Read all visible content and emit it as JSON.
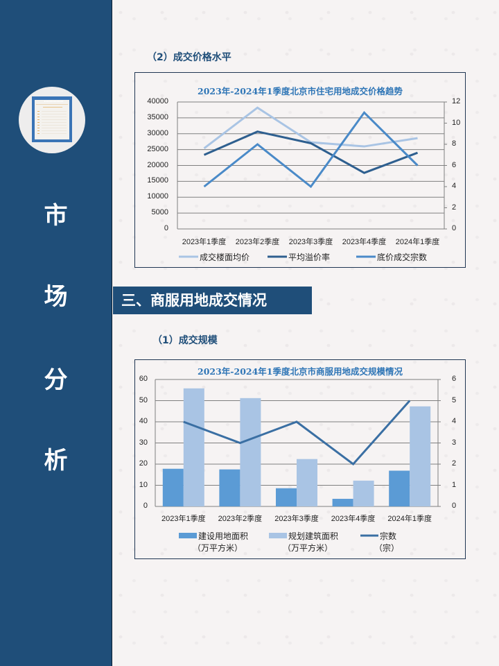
{
  "sidebar": {
    "title_chars": [
      "市",
      "场",
      "分",
      "析"
    ],
    "icon": "document-list-icon",
    "bg_color": "#1f4e79"
  },
  "section2": {
    "subtitle": "（2）成交价格水平"
  },
  "section3": {
    "header": "三、商服用地成交情况",
    "subtitle": "（1）成交规模"
  },
  "chart_data": [
    {
      "type": "line",
      "title": "2023年-2024年1季度北京市住宅用地成交价格趋势",
      "categories": [
        "2023年1季度",
        "2023年2季度",
        "2023年3季度",
        "2023年4季度",
        "2024年1季度"
      ],
      "series": [
        {
          "name": "成交楼面均价",
          "axis": "left",
          "color": "#a9c4e4",
          "values": [
            25400,
            38200,
            27300,
            26000,
            28600
          ]
        },
        {
          "name": "平均溢价率",
          "axis": "right",
          "color": "#2e5f8f",
          "values": [
            7.0,
            9.2,
            8.1,
            5.3,
            7.2
          ]
        },
        {
          "name": "底价成交宗数",
          "axis": "right",
          "color": "#4a8ac8",
          "values": [
            4,
            8,
            4,
            11,
            6
          ]
        }
      ],
      "y_left": {
        "min": 0,
        "max": 40000,
        "ticks": [
          "0",
          "5000",
          "10000",
          "15000",
          "20000",
          "25000",
          "30000",
          "35000",
          "40000"
        ]
      },
      "y_right": {
        "min": 0,
        "max": 12,
        "ticks": [
          "0",
          "2",
          "4",
          "6",
          "8",
          "10",
          "12"
        ]
      },
      "grid": true,
      "legend_position": "bottom"
    },
    {
      "type": "bar",
      "title": "2023年-2024年1季度北京市商服用地成交规模情况",
      "categories": [
        "2023年1季度",
        "2023年2季度",
        "2023年3季度",
        "2023年4季度",
        "2024年1季度"
      ],
      "series": [
        {
          "name": "建设用地面积（万平方米）",
          "legend_line1": "建设用地面积",
          "legend_line2": "（万平方米）",
          "type": "bar",
          "axis": "left",
          "color": "#5b9bd5",
          "values": [
            17.8,
            17.5,
            8.6,
            3.6,
            16.9
          ]
        },
        {
          "name": "规划建筑面积（万平方米）",
          "legend_line1": "规划建筑面积",
          "legend_line2": "（万平方米）",
          "type": "bar",
          "axis": "left",
          "color": "#a9c4e4",
          "values": [
            55.8,
            51.2,
            22.4,
            12.2,
            47.3
          ]
        },
        {
          "name": "宗数（宗）",
          "legend_line1": "宗数",
          "legend_line2": "（宗）",
          "type": "line",
          "axis": "right",
          "color": "#3a6fa3",
          "values": [
            4,
            3,
            4,
            2,
            5
          ]
        }
      ],
      "y_left": {
        "min": 0,
        "max": 60,
        "ticks": [
          "0",
          "10",
          "20",
          "30",
          "40",
          "50",
          "60"
        ]
      },
      "y_right": {
        "min": 0,
        "max": 6,
        "ticks": [
          "0",
          "1",
          "2",
          "3",
          "4",
          "5",
          "6"
        ]
      },
      "grid": true,
      "legend_position": "bottom"
    }
  ]
}
